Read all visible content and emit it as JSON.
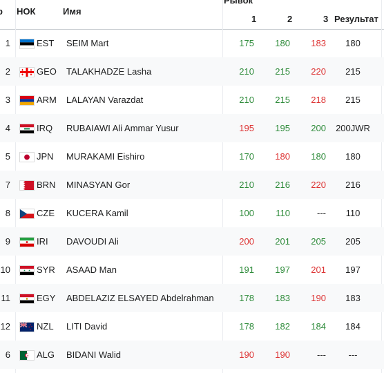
{
  "table": {
    "headers": {
      "rank": "р",
      "noc": "НОК",
      "name": "Имя",
      "snatch": "Рывок",
      "att1": "1",
      "att2": "2",
      "att3": "3",
      "result": "Результат"
    },
    "rows": [
      {
        "rank": "1",
        "flag": "flag-est-icon",
        "noc": "EST",
        "name": "SEIM Mart",
        "a1": "175",
        "a1s": "good",
        "a2": "180",
        "a2s": "good",
        "a3": "183",
        "a3s": "bad",
        "result": "180"
      },
      {
        "rank": "2",
        "flag": "flag-geo-icon",
        "noc": "GEO",
        "name": "TALAKHADZE Lasha",
        "a1": "210",
        "a1s": "good",
        "a2": "215",
        "a2s": "good",
        "a3": "220",
        "a3s": "bad",
        "result": "215"
      },
      {
        "rank": "3",
        "flag": "flag-arm-icon",
        "noc": "ARM",
        "name": "LALAYAN Varazdat",
        "a1": "210",
        "a1s": "good",
        "a2": "215",
        "a2s": "good",
        "a3": "218",
        "a3s": "bad",
        "result": "215"
      },
      {
        "rank": "4",
        "flag": "flag-irq-icon",
        "noc": "IRQ",
        "name": "RUBAIAWI Ali Ammar Yusur",
        "a1": "195",
        "a1s": "bad",
        "a2": "195",
        "a2s": "good",
        "a3": "200",
        "a3s": "good",
        "result": "200JWR"
      },
      {
        "rank": "5",
        "flag": "flag-jpn-icon",
        "noc": "JPN",
        "name": "MURAKAMI Eishiro",
        "a1": "170",
        "a1s": "good",
        "a2": "180",
        "a2s": "bad",
        "a3": "180",
        "a3s": "good",
        "result": "180"
      },
      {
        "rank": "7",
        "flag": "flag-brn-icon",
        "noc": "BRN",
        "name": "MINASYAN Gor",
        "a1": "210",
        "a1s": "good",
        "a2": "216",
        "a2s": "good",
        "a3": "220",
        "a3s": "bad",
        "result": "216"
      },
      {
        "rank": "8",
        "flag": "flag-cze-icon",
        "noc": "CZE",
        "name": "KUCERA Kamil",
        "a1": "100",
        "a1s": "good",
        "a2": "110",
        "a2s": "good",
        "a3": "---",
        "a3s": "none",
        "result": "110"
      },
      {
        "rank": "9",
        "flag": "flag-iri-icon",
        "noc": "IRI",
        "name": "DAVOUDI Ali",
        "a1": "200",
        "a1s": "bad",
        "a2": "201",
        "a2s": "good",
        "a3": "205",
        "a3s": "good",
        "result": "205"
      },
      {
        "rank": "10",
        "flag": "flag-syr-icon",
        "noc": "SYR",
        "name": "ASAAD Man",
        "a1": "191",
        "a1s": "good",
        "a2": "197",
        "a2s": "good",
        "a3": "201",
        "a3s": "bad",
        "result": "197"
      },
      {
        "rank": "11",
        "flag": "flag-egy-icon",
        "noc": "EGY",
        "name": "ABDELAZIZ ELSAYED Abdelrahman",
        "a1": "178",
        "a1s": "good",
        "a2": "183",
        "a2s": "good",
        "a3": "190",
        "a3s": "bad",
        "result": "183"
      },
      {
        "rank": "12",
        "flag": "flag-nzl-icon",
        "noc": "NZL",
        "name": "LITI David",
        "a1": "178",
        "a1s": "good",
        "a2": "182",
        "a2s": "good",
        "a3": "184",
        "a3s": "good",
        "result": "184"
      },
      {
        "rank": "6",
        "flag": "flag-alg-icon",
        "noc": "ALG",
        "name": "BIDANI Walid",
        "a1": "190",
        "a1s": "bad",
        "a2": "190",
        "a2s": "bad",
        "a3": "---",
        "a3s": "none",
        "result": "---"
      }
    ]
  },
  "colors": {
    "good": "#2e8b3a",
    "bad": "#dd3333"
  }
}
